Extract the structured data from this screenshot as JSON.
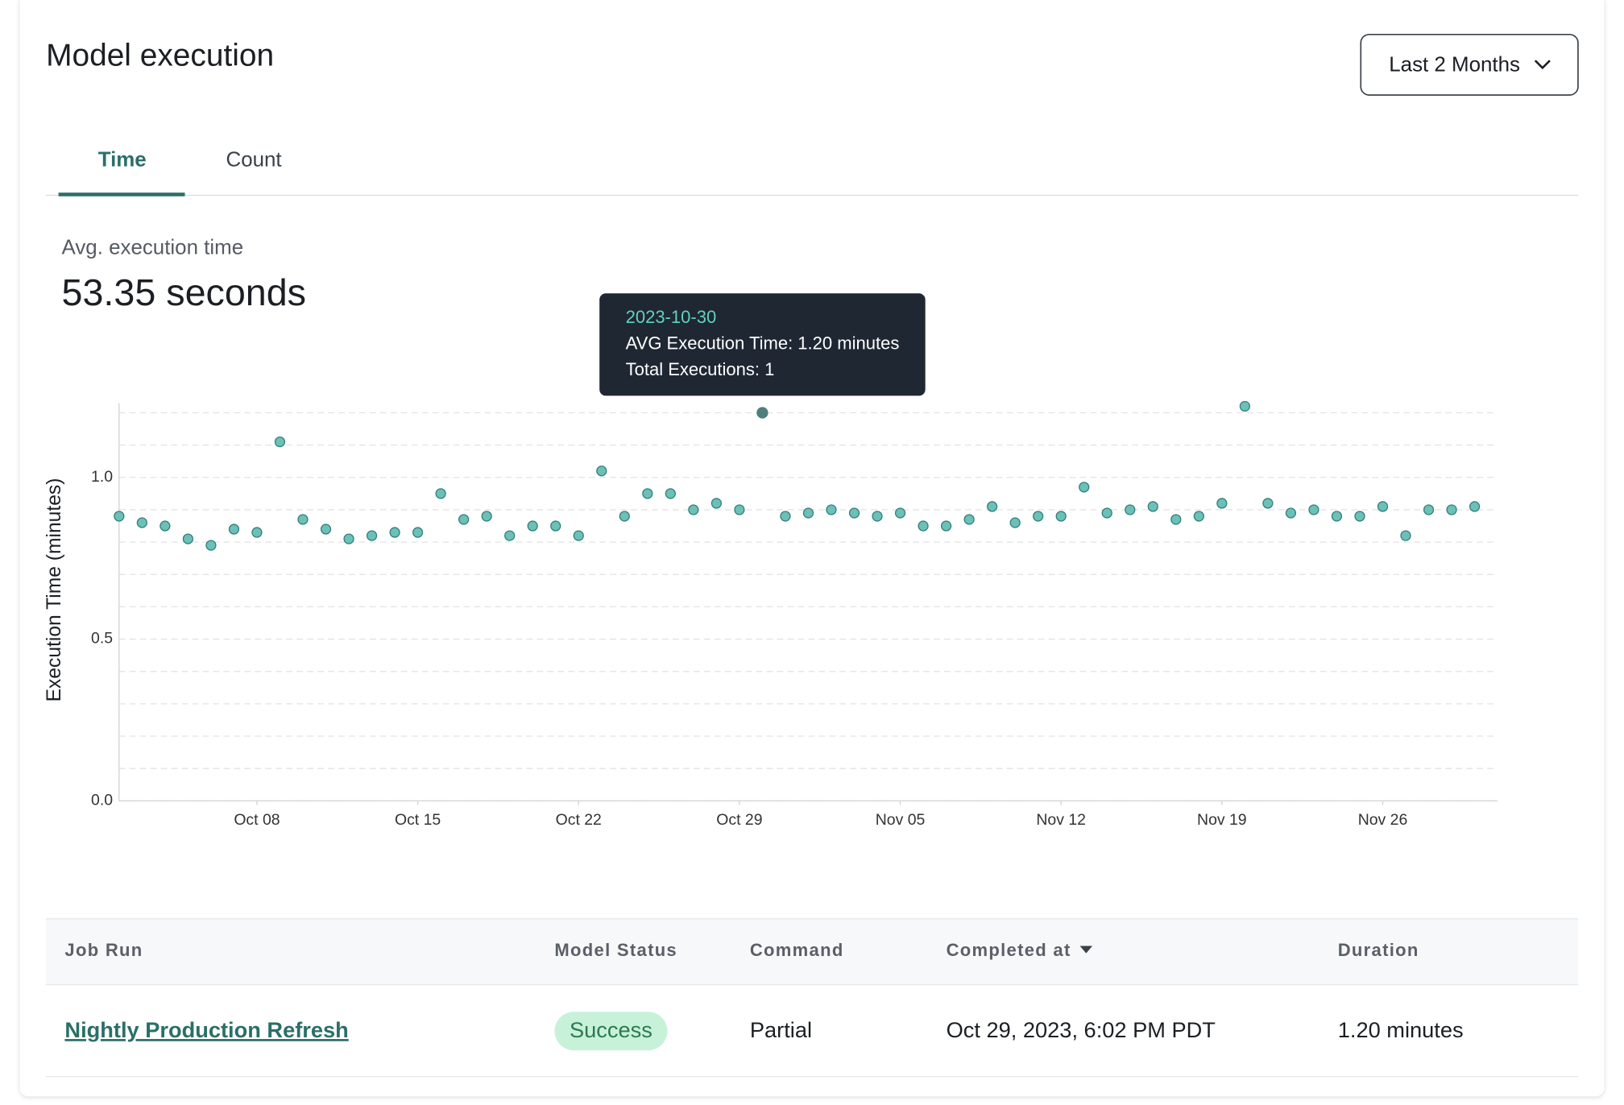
{
  "header": {
    "title": "Model execution",
    "range_button": "Last 2 Months"
  },
  "tabs": [
    "Time",
    "Count"
  ],
  "summary": {
    "label": "Avg. execution time",
    "value": "53.35 seconds"
  },
  "tooltip": {
    "date": "2023-10-30",
    "lines": [
      "AVG Execution Time: 1.20 minutes",
      "Total Executions: 1"
    ]
  },
  "chart_data": {
    "type": "scatter",
    "y_label": "Execution Time (minutes)",
    "x": [
      "2023-10-02",
      "2023-10-03",
      "2023-10-04",
      "2023-10-05",
      "2023-10-06",
      "2023-10-07",
      "2023-10-08",
      "2023-10-09",
      "2023-10-10",
      "2023-10-11",
      "2023-10-12",
      "2023-10-13",
      "2023-10-14",
      "2023-10-15",
      "2023-10-16",
      "2023-10-17",
      "2023-10-18",
      "2023-10-19",
      "2023-10-20",
      "2023-10-21",
      "2023-10-22",
      "2023-10-23",
      "2023-10-24",
      "2023-10-25",
      "2023-10-26",
      "2023-10-27",
      "2023-10-28",
      "2023-10-29",
      "2023-10-30",
      "2023-10-31",
      "2023-11-01",
      "2023-11-02",
      "2023-11-03",
      "2023-11-04",
      "2023-11-05",
      "2023-11-06",
      "2023-11-07",
      "2023-11-08",
      "2023-11-09",
      "2023-11-10",
      "2023-11-11",
      "2023-11-12",
      "2023-11-13",
      "2023-11-14",
      "2023-11-15",
      "2023-11-16",
      "2023-11-17",
      "2023-11-18",
      "2023-11-19",
      "2023-11-20",
      "2023-11-21",
      "2023-11-22",
      "2023-11-23",
      "2023-11-24",
      "2023-11-25",
      "2023-11-26",
      "2023-11-27",
      "2023-11-28",
      "2023-11-29",
      "2023-11-30"
    ],
    "series": [
      {
        "color": "#6cc0b8",
        "values": [
          0.88,
          0.86,
          0.85,
          0.81,
          0.79,
          0.84,
          0.83,
          1.11,
          0.87,
          0.84,
          0.81,
          0.82,
          0.83,
          0.83,
          0.95,
          0.87,
          0.88,
          0.82,
          0.85,
          0.85,
          0.82,
          1.02,
          0.88,
          0.95,
          0.95,
          0.9,
          0.92,
          0.9,
          1.2,
          0.88,
          0.89,
          0.9,
          0.89,
          0.88,
          0.89,
          0.85,
          0.85,
          0.87,
          0.91,
          0.86,
          0.88,
          0.88,
          0.97,
          0.89,
          0.9,
          0.91,
          0.87,
          0.88,
          0.92,
          1.22,
          0.92,
          0.89,
          0.9,
          0.88,
          0.88,
          0.91,
          0.82,
          0.9,
          0.9,
          0.91
        ]
      }
    ],
    "xlim": [
      "2023-10-02",
      "2023-12-01"
    ],
    "xticks": [
      {
        "value": "2023-10-08",
        "label": "Oct 08"
      },
      {
        "value": "2023-10-15",
        "label": "Oct 15"
      },
      {
        "value": "2023-10-22",
        "label": "Oct 22"
      },
      {
        "value": "2023-10-29",
        "label": "Oct 29"
      },
      {
        "value": "2023-11-05",
        "label": "Nov 05"
      },
      {
        "value": "2023-11-12",
        "label": "Nov 12"
      },
      {
        "value": "2023-11-19",
        "label": "Nov 19"
      },
      {
        "value": "2023-11-26",
        "label": "Nov 26"
      }
    ],
    "ylim": [
      0,
      1.23
    ],
    "yticks": [
      {
        "value": 0,
        "label": "0.0"
      },
      {
        "value": 0.5,
        "label": "0.5"
      },
      {
        "value": 1,
        "label": "1.0"
      }
    ],
    "minor_yticks": [
      0.1,
      0.2,
      0.3,
      0.4,
      0.6,
      0.7,
      0.8,
      0.9,
      1.1,
      1.2
    ],
    "grid": true,
    "highlight_color": "#4f7f7c"
  },
  "table": {
    "columns": [
      "Job Run",
      "Model Status",
      "Command",
      "Completed at",
      "Duration"
    ],
    "rows": [
      [
        "Nightly Production Refresh",
        "Success",
        "Partial",
        "Oct 29, 2023, 6:02 PM PDT",
        "1.20 minutes"
      ]
    ]
  }
}
